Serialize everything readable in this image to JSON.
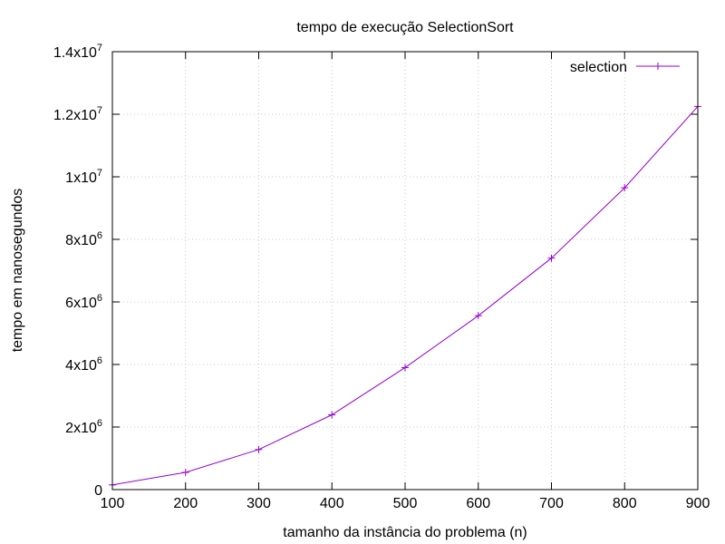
{
  "chart_data": {
    "type": "line",
    "title": "tempo de execução SelectionSort",
    "xlabel": "tamanho da instância do problema (n)",
    "ylabel": "tempo em nanosegundos",
    "xlim": [
      100,
      900
    ],
    "ylim": [
      0,
      14000000
    ],
    "grid": true,
    "legend_position": "top-right",
    "x_ticks": [
      {
        "value": 100,
        "label": "100"
      },
      {
        "value": 200,
        "label": "200"
      },
      {
        "value": 300,
        "label": "300"
      },
      {
        "value": 400,
        "label": "400"
      },
      {
        "value": 500,
        "label": "500"
      },
      {
        "value": 600,
        "label": "600"
      },
      {
        "value": 700,
        "label": "700"
      },
      {
        "value": 800,
        "label": "800"
      },
      {
        "value": 900,
        "label": "900"
      }
    ],
    "y_ticks": [
      {
        "value": 0,
        "mantissa": "0",
        "exponent": ""
      },
      {
        "value": 2000000,
        "mantissa": "2x10",
        "exponent": "6"
      },
      {
        "value": 4000000,
        "mantissa": "4x10",
        "exponent": "6"
      },
      {
        "value": 6000000,
        "mantissa": "6x10",
        "exponent": "6"
      },
      {
        "value": 8000000,
        "mantissa": "8x10",
        "exponent": "6"
      },
      {
        "value": 10000000,
        "mantissa": "1x10",
        "exponent": "7"
      },
      {
        "value": 12000000,
        "mantissa": "1.2x10",
        "exponent": "7"
      },
      {
        "value": 14000000,
        "mantissa": "1.4x10",
        "exponent": "7"
      }
    ],
    "series": [
      {
        "name": "selection",
        "color": "#9400d3",
        "x": [
          100,
          200,
          300,
          400,
          500,
          600,
          700,
          800,
          900
        ],
        "values": [
          150000,
          550000,
          1280000,
          2390000,
          3900000,
          5560000,
          7400000,
          9650000,
          12250000
        ]
      }
    ]
  }
}
